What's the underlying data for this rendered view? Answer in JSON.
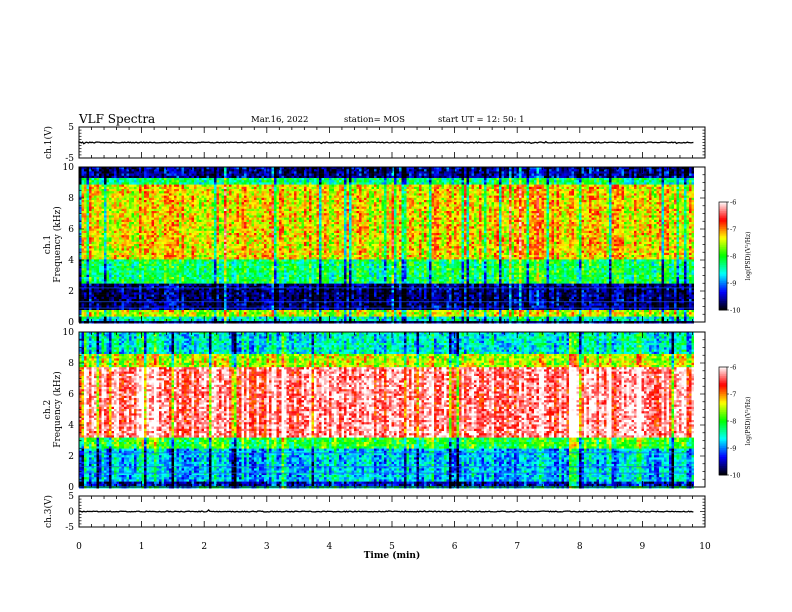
{
  "header": {
    "title": "VLF Spectra",
    "date": "Mar.16, 2022",
    "station": "station= MOS",
    "start_ut": "start  UT =   12: 50: 1"
  },
  "chart_data": {
    "type": "heatmap",
    "x_axis": {
      "label": "Time  (min)",
      "range": [
        0,
        10
      ],
      "ticks": [
        0,
        1,
        2,
        3,
        4,
        5,
        6,
        7,
        8,
        9,
        10
      ],
      "data_end": 9.82
    },
    "panels": [
      {
        "id": "ch1_waveform",
        "type": "line",
        "ylabel": "ch.1(V)",
        "ylim": [
          -5,
          5
        ],
        "yticks": [
          5,
          -5
        ],
        "baseline": 0
      },
      {
        "id": "ch1_spectrogram",
        "type": "heatmap",
        "ylabel_line1": "ch.1",
        "ylabel_line2": "Frequency  (kHz)",
        "ylim": [
          0,
          10
        ],
        "yticks": [
          0,
          2,
          4,
          6,
          8,
          10
        ],
        "bands": [
          {
            "from": 0.0,
            "to": 0.4,
            "level": -8.5
          },
          {
            "from": 0.4,
            "to": 0.8,
            "level": -7.5
          },
          {
            "from": 0.8,
            "to": 2.5,
            "level": -9.7
          },
          {
            "from": 2.5,
            "to": 4.0,
            "level": -8.2
          },
          {
            "from": 4.0,
            "to": 8.8,
            "level": -7.3
          },
          {
            "from": 8.8,
            "to": 9.3,
            "level": -8.3
          },
          {
            "from": 9.3,
            "to": 10.0,
            "level": -9.6
          }
        ]
      },
      {
        "id": "ch2_spectrogram",
        "type": "heatmap",
        "ylabel_line1": "ch.2",
        "ylabel_line2": "Frequency  (kHz)",
        "ylim": [
          0,
          10
        ],
        "yticks": [
          0,
          2,
          4,
          6,
          8,
          10
        ],
        "bands": [
          {
            "from": 0.0,
            "to": 0.3,
            "level": -9.5
          },
          {
            "from": 0.3,
            "to": 2.5,
            "level": -8.8
          },
          {
            "from": 2.5,
            "to": 3.2,
            "level": -8.0
          },
          {
            "from": 3.2,
            "to": 7.8,
            "level": -6.3
          },
          {
            "from": 7.8,
            "to": 8.6,
            "level": -7.5
          },
          {
            "from": 8.6,
            "to": 10.0,
            "level": -8.6
          }
        ]
      },
      {
        "id": "ch3_waveform",
        "type": "line",
        "ylabel": "ch.3(V)",
        "ylim": [
          -5,
          5
        ],
        "yticks": [
          5,
          0,
          -5
        ],
        "baseline": 0
      }
    ],
    "colorbars": [
      {
        "label": "log(PSD)(V²/Hz)",
        "range": [
          -10,
          -6
        ],
        "ticks": [
          -6,
          -7,
          -8,
          -9,
          -10
        ]
      },
      {
        "label": "log(PSD)(V²/Hz)",
        "range": [
          -10,
          -6
        ],
        "ticks": [
          -6,
          -7,
          -8,
          -9,
          -10
        ]
      }
    ],
    "colormap": [
      "#000000",
      "#0000ff",
      "#00ffff",
      "#00ff00",
      "#ffff00",
      "#ff0000",
      "#ffffff"
    ]
  }
}
